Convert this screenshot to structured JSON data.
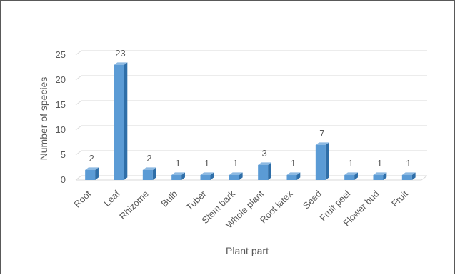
{
  "chart_data": {
    "type": "bar",
    "style": "3d-column",
    "categories": [
      "Root",
      "Leaf",
      "Rhizome",
      "Bulb",
      "Tuber",
      "Stem bark",
      "Whole plant",
      "Root latex",
      "Seed",
      "Fruit peel",
      "Flower bud",
      "Fruit"
    ],
    "values": [
      2,
      23,
      2,
      1,
      1,
      1,
      3,
      1,
      7,
      1,
      1,
      1
    ],
    "title": "",
    "xlabel": "Plant part",
    "ylabel": "Number of species",
    "ylim": [
      0,
      25
    ],
    "yticks": [
      0,
      5,
      10,
      15,
      20,
      25
    ],
    "grid": true,
    "legend": "none",
    "data_labels": true,
    "colors": {
      "bar_front": "#5b9bd5",
      "bar_side": "#2e6ea8",
      "bar_top": "#8cb9e2",
      "grid": "#d9d9d9",
      "text": "#595959",
      "border": "#595959"
    }
  }
}
